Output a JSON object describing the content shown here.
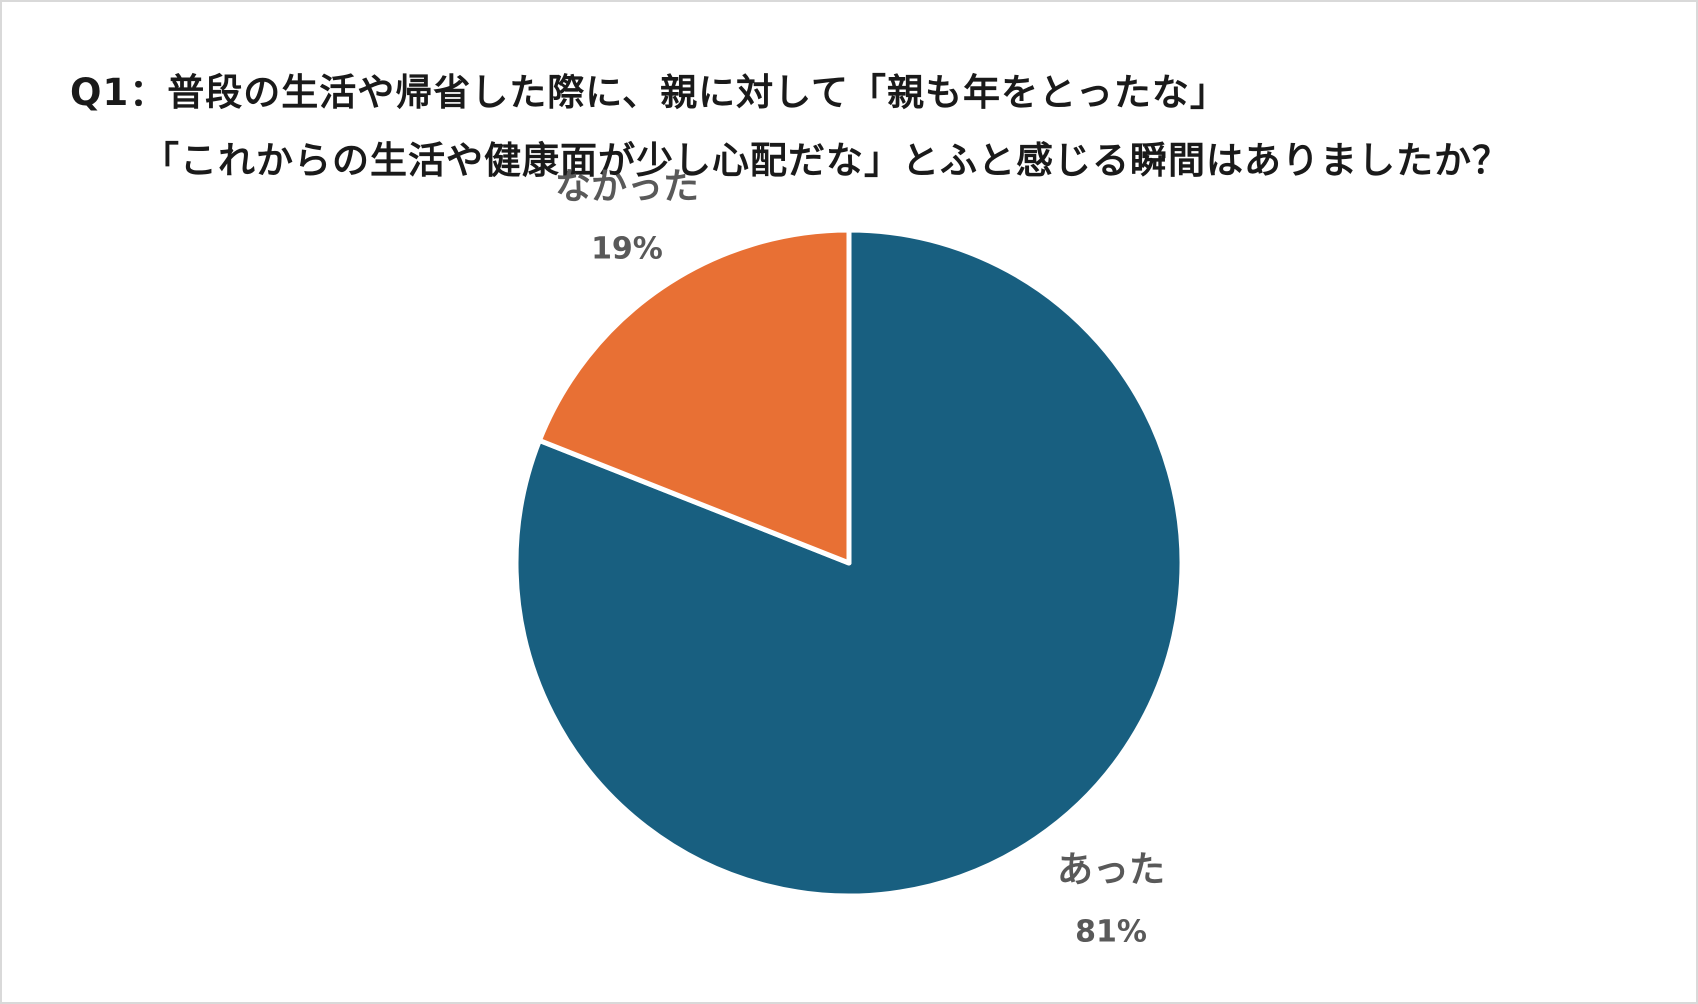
{
  "title": {
    "line1": "Q1：普段の生活や帰省した際に、親に対して「親も年をとったな」",
    "line2": "「これからの生活や健康面が少し心配だな」とふと感じる瞬間はありましたか？"
  },
  "chart_data": {
    "type": "pie",
    "title": "Q1：普段の生活や帰省した際に、親に対して「親も年をとったな」「これからの生活や健康面が少し心配だな」とふと感じる瞬間はありましたか？",
    "slices": [
      {
        "label": "あった",
        "value": 81,
        "value_label": "81%",
        "color": "#185f80"
      },
      {
        "label": "なかった",
        "value": 19,
        "value_label": "19%",
        "color": "#e87034"
      }
    ],
    "start_angle": "12 o'clock",
    "direction": "clockwise",
    "legend": "none",
    "data_labels": "outside"
  }
}
